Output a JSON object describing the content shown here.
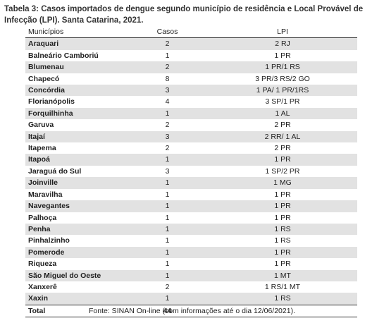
{
  "title": "Tabela 3: Casos importados de dengue segundo município de residência e Local Provável de Infecção (LPI). Santa Catarina, 2021.",
  "table": {
    "headers": [
      "Municípios",
      "Casos",
      "LPI"
    ],
    "rows": [
      [
        "Araquari",
        "2",
        "2 RJ"
      ],
      [
        "Balneário Camboriú",
        "1",
        "1 PR"
      ],
      [
        "Blumenau",
        "2",
        "1 PR/1 RS"
      ],
      [
        "Chapecó",
        "8",
        "3 PR/3 RS/2 GO"
      ],
      [
        "Concórdia",
        "3",
        "1 PA/ 1 PR/1RS"
      ],
      [
        "Florianópolis",
        "4",
        "3 SP/1 PR"
      ],
      [
        "Forquilhinha",
        "1",
        "1 AL"
      ],
      [
        "Garuva",
        "2",
        "2 PR"
      ],
      [
        "Itajaí",
        "3",
        "2 RR/ 1 AL"
      ],
      [
        "Itapema",
        "2",
        "2 PR"
      ],
      [
        "Itapoá",
        "1",
        "1 PR"
      ],
      [
        "Jaraguá do Sul",
        "3",
        "1 SP/2 PR"
      ],
      [
        "Joinville",
        "1",
        "1 MG"
      ],
      [
        "Maravilha",
        "1",
        "1 PR"
      ],
      [
        "Navegantes",
        "1",
        "1 PR"
      ],
      [
        "Palhoça",
        "1",
        "1 PR"
      ],
      [
        "Penha",
        "1",
        "1 RS"
      ],
      [
        "Pinhalzinho",
        "1",
        "1 RS"
      ],
      [
        "Pomerode",
        "1",
        "1 PR"
      ],
      [
        "Riqueza",
        "1",
        "1 PR"
      ],
      [
        "São Miguel do Oeste",
        "1",
        "1 MT"
      ],
      [
        "Xanxerê",
        "2",
        "1 RS/1 MT"
      ],
      [
        "Xaxin",
        "1",
        "1 RS"
      ]
    ],
    "total": {
      "label": "Total",
      "value": "44",
      "lpi": ""
    }
  },
  "source": "Fonte: SINAN On-line (com informações até o dia 12/06/2021).",
  "colors": {
    "row_shade": "#e2e2e2",
    "rule": "#333333"
  }
}
